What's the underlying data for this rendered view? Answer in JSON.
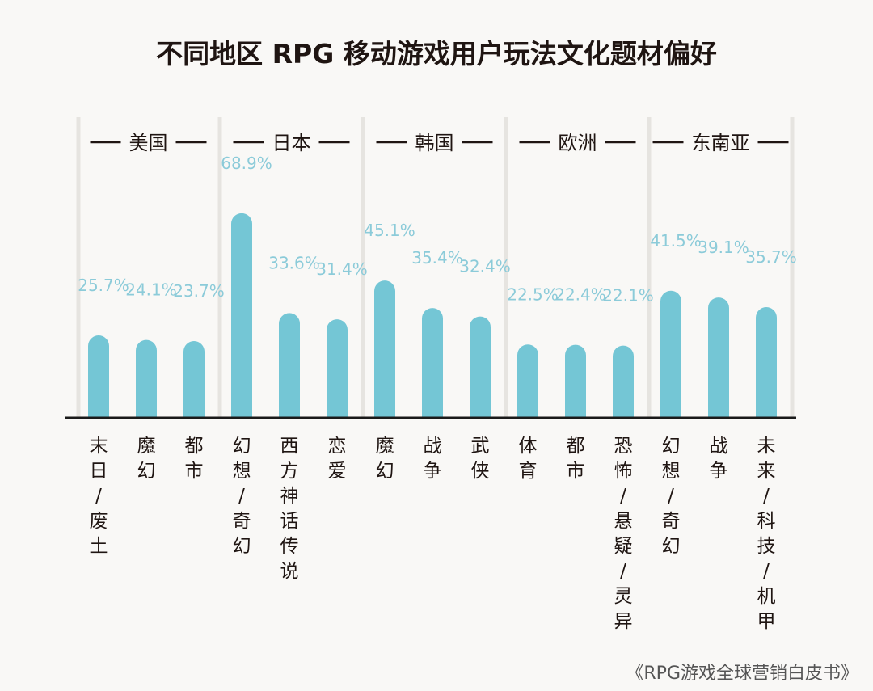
{
  "chart_data": {
    "type": "bar",
    "title": "不同地区 RPG 移动游戏用户玩法文化题材偏好",
    "groups": [
      {
        "name": "美国",
        "categories": [
          "末日/废土",
          "魔幻",
          "都市"
        ],
        "values": [
          25.7,
          24.1,
          23.7
        ]
      },
      {
        "name": "日本",
        "categories": [
          "幻想/奇幻",
          "西方神话传说",
          "恋爱"
        ],
        "values": [
          68.9,
          33.6,
          31.4
        ]
      },
      {
        "name": "韩国",
        "categories": [
          "魔幻",
          "战争",
          "武侠"
        ],
        "values": [
          45.1,
          35.4,
          32.4
        ]
      },
      {
        "name": "欧洲",
        "categories": [
          "体育",
          "都市",
          "恐怖/悬疑/灵异"
        ],
        "values": [
          22.5,
          22.4,
          22.1
        ]
      },
      {
        "name": "东南亚",
        "categories": [
          "幻想/奇幻",
          "战争",
          "未来/科技/机甲"
        ],
        "values": [
          41.5,
          39.1,
          35.7
        ]
      }
    ],
    "value_suffix": "%",
    "grid": false,
    "colors": {
      "bar": "#74c6d5",
      "label": "#8ccbd9",
      "axis": "#1a1a1a",
      "divider": "#e6e4e0"
    }
  },
  "source": "《RPG游戏全球营销白皮书》"
}
